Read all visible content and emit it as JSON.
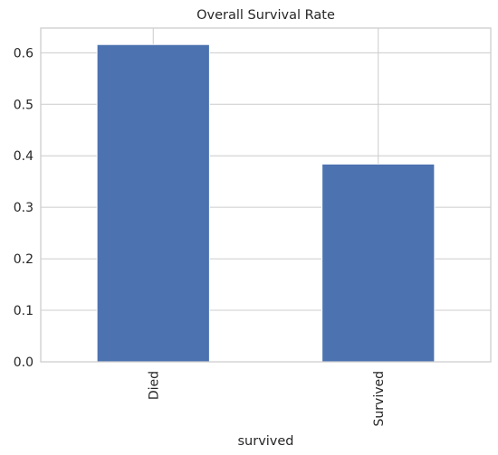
{
  "chart_data": {
    "type": "bar",
    "title": "Overall Survival Rate",
    "xlabel": "survived",
    "ylabel": "",
    "categories": [
      "Died",
      "Survived"
    ],
    "values": [
      0.616,
      0.384
    ],
    "ylim": [
      0,
      0.648
    ],
    "yticks": [
      0.0,
      0.1,
      0.2,
      0.3,
      0.4,
      0.5,
      0.6
    ],
    "ytick_labels": [
      "0.0",
      "0.1",
      "0.2",
      "0.3",
      "0.4",
      "0.5",
      "0.6"
    ],
    "grid": true,
    "legend": "none",
    "bar_color": "#4c72b0",
    "grid_color": "#cccccc",
    "axes_edge_color": "#cccccc"
  }
}
